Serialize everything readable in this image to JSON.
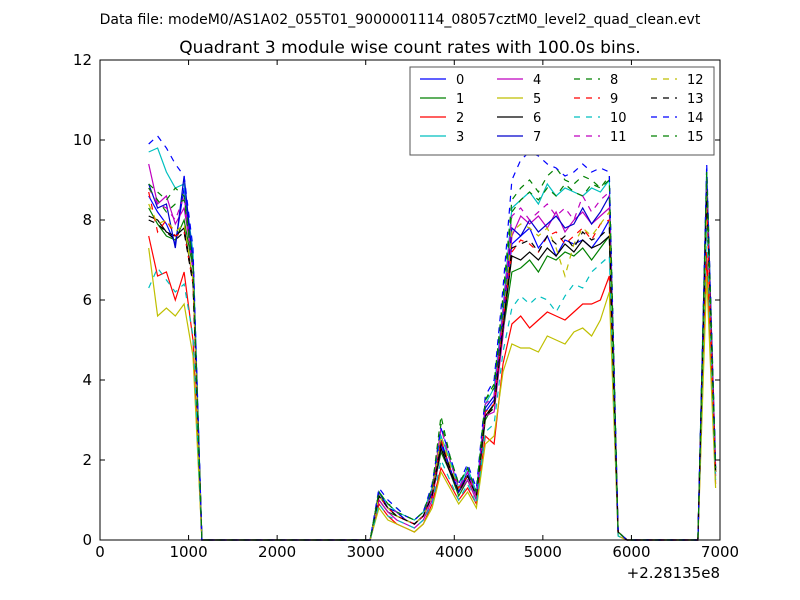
{
  "chart_data": {
    "type": "line",
    "suptitle": "Data file: modeM0/AS1A02_055T01_9000001114_08057cztM0_level2_quad_clean.evt",
    "title": "Quadrant 3 module wise count rates with 100.0s bins.",
    "xlabel": "",
    "ylabel": "",
    "x_offset_label": "+2.28135e8",
    "xlim": [
      0,
      7000
    ],
    "ylim": [
      0,
      12
    ],
    "xticks": [
      "0",
      "1000",
      "2000",
      "3000",
      "4000",
      "5000",
      "6000",
      "7000"
    ],
    "yticks": [
      "0",
      "2",
      "4",
      "6",
      "8",
      "10",
      "12"
    ],
    "legend_location": "top-right",
    "legend_columns": 4,
    "x": [
      550,
      650,
      750,
      850,
      950,
      1050,
      1150,
      1250,
      1350,
      1450,
      1550,
      1650,
      1750,
      1850,
      1950,
      2050,
      2150,
      2250,
      2350,
      2450,
      2550,
      2650,
      2750,
      2850,
      2950,
      3050,
      3150,
      3250,
      3350,
      3450,
      3550,
      3650,
      3750,
      3850,
      3950,
      4050,
      4150,
      4250,
      4350,
      4450,
      4550,
      4650,
      4750,
      4850,
      4950,
      5050,
      5150,
      5250,
      5350,
      5450,
      5550,
      5650,
      5750,
      5850,
      5950,
      6050,
      6150,
      6250,
      6350,
      6450,
      6550,
      6650,
      6750,
      6850,
      6950
    ],
    "series": [
      {
        "name": "0",
        "color": "#0000ff",
        "dash": "solid",
        "values": [
          8.6,
          8.2,
          7.9,
          7.4,
          8.8,
          7.0,
          0,
          0,
          0,
          0,
          0,
          0,
          0,
          0,
          0,
          0,
          0,
          0,
          0,
          0,
          0,
          0,
          0,
          0,
          0,
          0,
          1.2,
          0.8,
          0.7,
          0.5,
          0.4,
          0.6,
          1.2,
          2.4,
          1.8,
          1.2,
          1.6,
          1.1,
          3.2,
          3.5,
          5.4,
          7.4,
          7.6,
          7.8,
          7.3,
          7.6,
          7.1,
          7.5,
          7.4,
          7.5,
          7.3,
          7.6,
          8.0,
          0.2,
          0,
          0,
          0,
          0,
          0,
          0,
          0,
          0,
          0,
          9.2,
          1.8
        ]
      },
      {
        "name": "1",
        "color": "#008000",
        "dash": "solid",
        "values": [
          8.3,
          7.9,
          7.6,
          7.5,
          8.0,
          6.8,
          0,
          0,
          0,
          0,
          0,
          0,
          0,
          0,
          0,
          0,
          0,
          0,
          0,
          0,
          0,
          0,
          0,
          0,
          0,
          0,
          1.0,
          0.7,
          0.6,
          0.5,
          0.4,
          0.6,
          1.1,
          2.2,
          1.7,
          1.1,
          1.5,
          1.0,
          3.0,
          3.4,
          5.2,
          6.7,
          6.8,
          7.0,
          6.7,
          7.1,
          7.0,
          7.2,
          7.1,
          7.3,
          7.0,
          7.3,
          7.6,
          0.2,
          0,
          0,
          0,
          0,
          0,
          0,
          0,
          0,
          0,
          8.6,
          1.7
        ]
      },
      {
        "name": "2",
        "color": "#ff0000",
        "dash": "solid",
        "values": [
          7.6,
          6.6,
          6.7,
          6.0,
          6.7,
          5.0,
          0,
          0,
          0,
          0,
          0,
          0,
          0,
          0,
          0,
          0,
          0,
          0,
          0,
          0,
          0,
          0,
          0,
          0,
          0,
          0,
          0.9,
          0.6,
          0.4,
          0.3,
          0.2,
          0.4,
          0.9,
          1.8,
          1.4,
          1.0,
          1.3,
          0.9,
          2.6,
          2.4,
          4.4,
          5.4,
          5.6,
          5.3,
          5.5,
          5.7,
          5.6,
          5.5,
          5.7,
          5.9,
          5.9,
          6.0,
          6.6,
          0.1,
          0,
          0,
          0,
          0,
          0,
          0,
          0,
          0,
          0,
          7.2,
          1.4
        ]
      },
      {
        "name": "3",
        "color": "#00bfbf",
        "dash": "solid",
        "values": [
          9.7,
          9.8,
          9.2,
          8.8,
          8.9,
          7.2,
          0,
          0,
          0,
          0,
          0,
          0,
          0,
          0,
          0,
          0,
          0,
          0,
          0,
          0,
          0,
          0,
          0,
          0,
          0,
          0,
          1.2,
          0.9,
          0.7,
          0.6,
          0.5,
          0.7,
          1.3,
          2.6,
          2.0,
          1.3,
          1.8,
          1.2,
          3.4,
          3.8,
          5.8,
          8.3,
          8.5,
          8.7,
          8.4,
          8.9,
          8.6,
          8.8,
          8.7,
          8.6,
          8.8,
          8.7,
          9.0,
          0.2,
          0,
          0,
          0,
          0,
          0,
          0,
          0,
          0,
          0,
          9.3,
          1.5
        ]
      },
      {
        "name": "4",
        "color": "#bf00bf",
        "dash": "solid",
        "values": [
          9.4,
          8.4,
          8.6,
          7.9,
          8.3,
          6.9,
          0,
          0,
          0,
          0,
          0,
          0,
          0,
          0,
          0,
          0,
          0,
          0,
          0,
          0,
          0,
          0,
          0,
          0,
          0,
          0,
          1.0,
          0.7,
          0.5,
          0.4,
          0.3,
          0.5,
          1.0,
          2.3,
          1.7,
          1.2,
          1.5,
          1.0,
          3.1,
          3.2,
          5.1,
          7.6,
          8.1,
          7.9,
          8.1,
          7.8,
          8.2,
          7.7,
          8.0,
          8.2,
          7.9,
          8.1,
          8.3,
          0.2,
          0,
          0,
          0,
          0,
          0,
          0,
          0,
          0,
          0,
          8.8,
          1.6
        ]
      },
      {
        "name": "5",
        "color": "#bfbf00",
        "dash": "solid",
        "values": [
          7.3,
          5.6,
          5.8,
          5.6,
          5.9,
          4.6,
          0,
          0,
          0,
          0,
          0,
          0,
          0,
          0,
          0,
          0,
          0,
          0,
          0,
          0,
          0,
          0,
          0,
          0,
          0,
          0,
          0.8,
          0.5,
          0.4,
          0.3,
          0.2,
          0.4,
          0.8,
          1.7,
          1.3,
          0.9,
          1.2,
          0.8,
          2.4,
          2.6,
          4.2,
          4.9,
          4.8,
          4.8,
          4.7,
          5.1,
          5.0,
          4.9,
          5.2,
          5.3,
          5.1,
          5.5,
          6.2,
          0.1,
          0,
          0,
          0,
          0,
          0,
          0,
          0,
          0,
          0,
          6.6,
          1.3
        ]
      },
      {
        "name": "6",
        "color": "#000000",
        "dash": "solid",
        "values": [
          8.1,
          8.0,
          7.7,
          7.6,
          7.8,
          6.5,
          0,
          0,
          0,
          0,
          0,
          0,
          0,
          0,
          0,
          0,
          0,
          0,
          0,
          0,
          0,
          0,
          0,
          0,
          0,
          0,
          1.1,
          0.8,
          0.6,
          0.5,
          0.4,
          0.6,
          1.1,
          2.3,
          1.7,
          1.2,
          1.6,
          1.1,
          3.1,
          3.4,
          5.3,
          7.1,
          7.0,
          7.2,
          7.0,
          7.3,
          7.1,
          7.4,
          7.2,
          7.5,
          7.3,
          7.4,
          7.6,
          0.2,
          0,
          0,
          0,
          0,
          0,
          0,
          0,
          0,
          0,
          8.9,
          1.7
        ]
      },
      {
        "name": "7",
        "color": "#0000cc",
        "dash": "solid",
        "values": [
          8.9,
          8.3,
          8.4,
          7.3,
          9.1,
          6.9,
          0,
          0,
          0,
          0,
          0,
          0,
          0,
          0,
          0,
          0,
          0,
          0,
          0,
          0,
          0,
          0,
          0,
          0,
          0,
          0,
          1.2,
          0.8,
          0.7,
          0.5,
          0.4,
          0.6,
          1.2,
          2.5,
          1.8,
          1.2,
          1.7,
          1.1,
          3.3,
          3.6,
          5.6,
          7.8,
          7.6,
          8.0,
          7.7,
          7.9,
          8.1,
          7.8,
          7.9,
          8.3,
          7.9,
          8.2,
          8.6,
          0.2,
          0,
          0,
          0,
          0,
          0,
          0,
          0,
          0,
          0,
          9.0,
          1.8
        ]
      },
      {
        "name": "8",
        "color": "#008000",
        "dash": "dashed",
        "values": [
          8.9,
          8.7,
          8.5,
          8.8,
          8.6,
          6.9,
          0,
          0,
          0,
          0,
          0,
          0,
          0,
          0,
          0,
          0,
          0,
          0,
          0,
          0,
          0,
          0,
          0,
          0,
          0,
          0,
          1.2,
          0.9,
          0.8,
          0.6,
          0.5,
          0.7,
          1.3,
          2.9,
          2.1,
          1.4,
          1.8,
          1.2,
          3.5,
          3.9,
          6.1,
          8.5,
          8.8,
          9.0,
          8.7,
          9.1,
          9.3,
          9.0,
          8.9,
          9.1,
          9.0,
          8.8,
          9.1,
          0.2,
          0,
          0,
          0,
          0,
          0,
          0,
          0,
          0,
          0,
          9.1,
          1.9
        ]
      },
      {
        "name": "9",
        "color": "#ff0000",
        "dash": "dashed",
        "values": [
          8.7,
          7.7,
          8.0,
          7.6,
          7.7,
          6.4,
          0,
          0,
          0,
          0,
          0,
          0,
          0,
          0,
          0,
          0,
          0,
          0,
          0,
          0,
          0,
          0,
          0,
          0,
          0,
          0,
          1.1,
          0.8,
          0.6,
          0.5,
          0.4,
          0.6,
          1.1,
          2.5,
          1.8,
          1.3,
          1.6,
          1.1,
          3.2,
          3.4,
          5.5,
          7.2,
          7.5,
          7.4,
          7.2,
          7.6,
          7.7,
          7.4,
          7.6,
          7.8,
          7.5,
          7.9,
          8.0,
          0.2,
          0,
          0,
          0,
          0,
          0,
          0,
          0,
          0,
          0,
          8.5,
          1.7
        ]
      },
      {
        "name": "10",
        "color": "#00bfbf",
        "dash": "dashed",
        "values": [
          6.3,
          6.8,
          6.5,
          6.2,
          6.4,
          5.1,
          0,
          0,
          0,
          0,
          0,
          0,
          0,
          0,
          0,
          0,
          0,
          0,
          0,
          0,
          0,
          0,
          0,
          0,
          0,
          0,
          0.9,
          0.6,
          0.5,
          0.4,
          0.3,
          0.5,
          0.9,
          2.0,
          1.5,
          1.0,
          1.4,
          0.9,
          2.7,
          2.9,
          4.7,
          5.8,
          6.1,
          5.9,
          6.1,
          6.0,
          5.7,
          6.1,
          6.4,
          6.3,
          6.7,
          6.9,
          7.1,
          0.1,
          0,
          0,
          0,
          0,
          0,
          0,
          0,
          0,
          0,
          7.8,
          1.5
        ]
      },
      {
        "name": "11",
        "color": "#bf00bf",
        "dash": "dashed",
        "values": [
          8.8,
          8.4,
          8.3,
          8.0,
          8.6,
          6.7,
          0,
          0,
          0,
          0,
          0,
          0,
          0,
          0,
          0,
          0,
          0,
          0,
          0,
          0,
          0,
          0,
          0,
          0,
          0,
          0,
          1.1,
          0.8,
          0.7,
          0.5,
          0.4,
          0.6,
          1.2,
          2.8,
          2.0,
          1.3,
          1.7,
          1.1,
          3.4,
          3.6,
          5.7,
          8.1,
          8.3,
          8.0,
          8.2,
          8.4,
          8.1,
          8.3,
          8.0,
          8.6,
          8.2,
          8.5,
          8.7,
          0.2,
          0,
          0,
          0,
          0,
          0,
          0,
          0,
          0,
          0,
          9.0,
          1.8
        ]
      },
      {
        "name": "12",
        "color": "#bfbf00",
        "dash": "dashed",
        "values": [
          8.4,
          7.9,
          8.0,
          7.7,
          7.9,
          6.5,
          0,
          0,
          0,
          0,
          0,
          0,
          0,
          0,
          0,
          0,
          0,
          0,
          0,
          0,
          0,
          0,
          0,
          0,
          0,
          0,
          1.1,
          0.8,
          0.6,
          0.5,
          0.4,
          0.6,
          1.1,
          2.6,
          1.9,
          1.2,
          1.6,
          1.1,
          3.1,
          3.3,
          5.4,
          7.7,
          7.9,
          7.8,
          7.6,
          7.8,
          7.3,
          6.6,
          7.4,
          7.8,
          7.6,
          7.9,
          8.2,
          0.2,
          0,
          0,
          0,
          0,
          0,
          0,
          0,
          0,
          0,
          8.6,
          1.7
        ]
      },
      {
        "name": "13",
        "color": "#000000",
        "dash": "dashed",
        "values": [
          8.0,
          7.9,
          7.7,
          7.5,
          7.7,
          6.4,
          0,
          0,
          0,
          0,
          0,
          0,
          0,
          0,
          0,
          0,
          0,
          0,
          0,
          0,
          0,
          0,
          0,
          0,
          0,
          0,
          1.1,
          0.8,
          0.6,
          0.5,
          0.4,
          0.6,
          1.1,
          2.4,
          1.8,
          1.2,
          1.6,
          1.1,
          3.1,
          3.3,
          5.3,
          7.3,
          7.4,
          7.5,
          7.2,
          7.6,
          7.4,
          7.6,
          7.3,
          7.7,
          7.5,
          7.6,
          7.8,
          0.2,
          0,
          0,
          0,
          0,
          0,
          0,
          0,
          0,
          0,
          8.7,
          1.7
        ]
      },
      {
        "name": "14",
        "color": "#0000ff",
        "dash": "dashed",
        "values": [
          9.9,
          10.1,
          9.8,
          9.4,
          9.1,
          7.3,
          0,
          0,
          0,
          0,
          0,
          0,
          0,
          0,
          0,
          0,
          0,
          0,
          0,
          0,
          0,
          0,
          0,
          0,
          0,
          0,
          1.3,
          1.0,
          0.8,
          0.6,
          0.5,
          0.7,
          1.4,
          2.8,
          2.1,
          1.4,
          1.9,
          1.3,
          3.6,
          4.0,
          6.3,
          9.0,
          9.5,
          9.7,
          9.6,
          9.4,
          9.3,
          9.1,
          9.2,
          9.4,
          9.2,
          9.3,
          9.2,
          0.2,
          0,
          0,
          0,
          0,
          0,
          0,
          0,
          0,
          0,
          9.4,
          1.9
        ]
      },
      {
        "name": "15",
        "color": "#008000",
        "dash": "dashed",
        "values": [
          8.8,
          8.5,
          8.2,
          8.4,
          8.5,
          6.8,
          0,
          0,
          0,
          0,
          0,
          0,
          0,
          0,
          0,
          0,
          0,
          0,
          0,
          0,
          0,
          0,
          0,
          0,
          0,
          0,
          1.2,
          0.9,
          0.7,
          0.6,
          0.5,
          0.7,
          1.3,
          3.1,
          2.1,
          1.4,
          1.8,
          1.2,
          3.5,
          3.8,
          6.0,
          8.2,
          8.5,
          8.7,
          8.5,
          8.8,
          8.6,
          8.9,
          8.7,
          8.6,
          8.9,
          8.8,
          9.0,
          0.2,
          0,
          0,
          0,
          0,
          0,
          0,
          0,
          0,
          0,
          9.2,
          1.8
        ]
      }
    ]
  }
}
